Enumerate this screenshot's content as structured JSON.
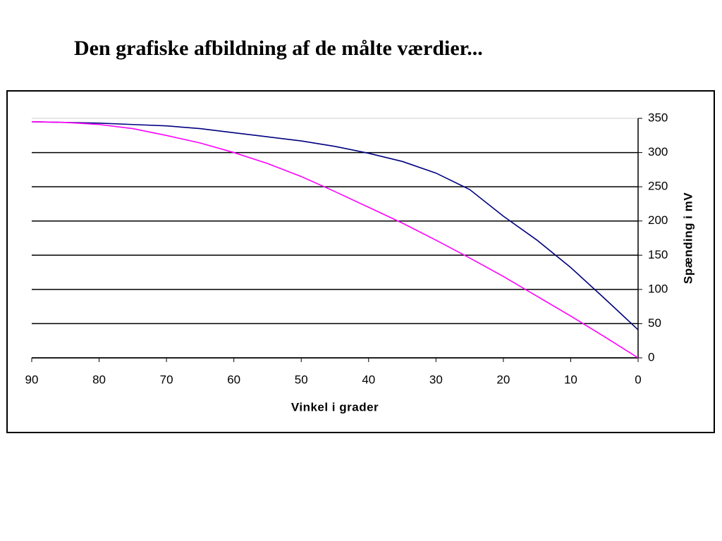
{
  "chart_data": {
    "type": "line",
    "title": "Den grafiske afbildning af de målte værdier...",
    "x_label": "Vinkel i grader",
    "y_label": "Spænding i mV",
    "x": [
      90,
      85,
      80,
      75,
      70,
      65,
      60,
      55,
      50,
      45,
      40,
      35,
      30,
      25,
      20,
      15,
      10,
      5,
      0
    ],
    "series": [
      {
        "color": "#000080",
        "values": [
          345,
          344,
          343,
          341,
          339,
          335,
          329,
          323,
          317,
          309,
          299,
          287,
          270,
          246,
          207,
          172,
          132,
          87,
          41
        ]
      },
      {
        "color": "#ff00ff",
        "values": [
          345,
          344,
          341,
          335,
          325,
          314,
          300,
          284,
          265,
          243,
          220,
          197,
          172,
          146,
          119,
          90,
          61,
          31,
          0
        ]
      }
    ],
    "xlim": [
      90,
      0
    ],
    "xticks": [
      90,
      80,
      70,
      60,
      50,
      40,
      30,
      20,
      10,
      0
    ],
    "ylim": [
      0,
      350
    ],
    "yticks": [
      0,
      50,
      100,
      150,
      200,
      250,
      300,
      350
    ],
    "grid": true
  }
}
